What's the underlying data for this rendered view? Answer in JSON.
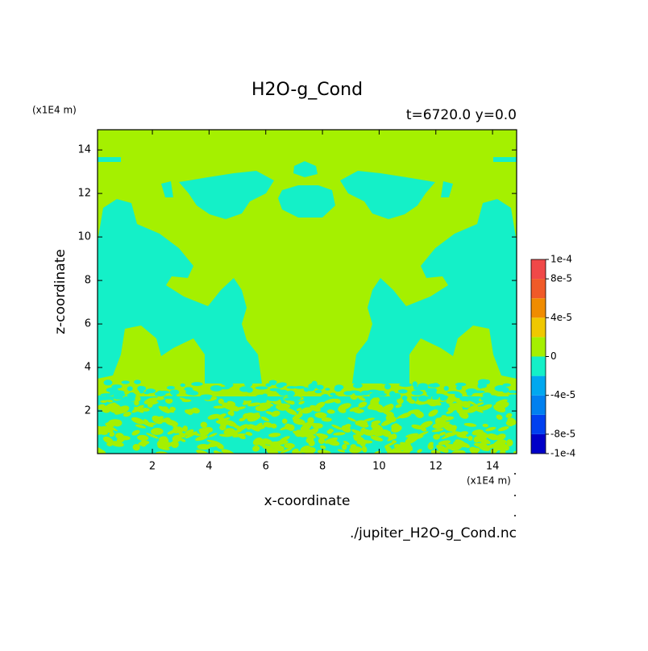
{
  "chart_data": {
    "type": "contour",
    "title": "H2O-g_Cond",
    "subtitle": "t=6720.0 y=0.0",
    "x_label": "x-coordinate",
    "y_label": "z-coordinate",
    "x_unit": "(x1E4 m)",
    "y_unit": "(x1E4 m)",
    "source": "./jupiter_H2O-g_Cond.nc",
    "xlim": [
      0.065,
      14.85
    ],
    "ylim": [
      0.04,
      14.93
    ],
    "xticks": [
      2,
      4,
      6,
      8,
      10,
      12,
      14
    ],
    "yticks": [
      2,
      4,
      6,
      8,
      10,
      12,
      14
    ],
    "colorbar": {
      "levels": [
        -0.0001,
        -8e-05,
        -6e-05,
        -4e-05,
        -2e-05,
        0,
        2e-05,
        4e-05,
        6e-05,
        8e-05,
        0.0001
      ],
      "colors": [
        "#0000c8",
        "#0040f0",
        "#0080f0",
        "#00a8f0",
        "#14f0c8",
        "#a5f000",
        "#f0c800",
        "#f08c00",
        "#f05a28",
        "#f04848"
      ],
      "ticks": [
        {
          "value": 0.0001,
          "label": "1e-4"
        },
        {
          "value": 8e-05,
          "label": "8e-5"
        },
        {
          "value": 4e-05,
          "label": "4e-5"
        },
        {
          "value": 0,
          "label": "0"
        },
        {
          "value": -4e-05,
          "label": "-4e-5"
        },
        {
          "value": -8e-05,
          "label": "-8e-5"
        },
        {
          "value": -0.0001,
          "label": "-1e-4"
        }
      ]
    }
  }
}
